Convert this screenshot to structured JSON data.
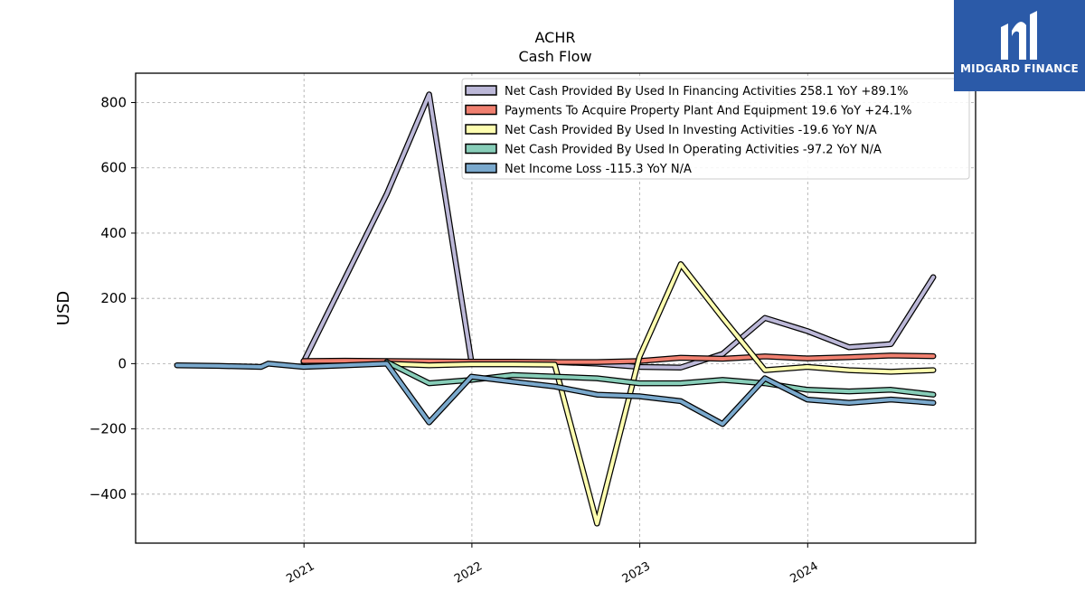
{
  "logo": {
    "text": "MIDGARD FINANCE",
    "color": "#2b5aa8"
  },
  "chart_data": {
    "type": "line",
    "title": "ACHR",
    "subtitle": "Cash Flow",
    "xlabel": "",
    "ylabel": "USD",
    "xlim": [
      "2020-01-01",
      "2024-12-31"
    ],
    "ylim": [
      -550,
      890
    ],
    "yticks": [
      -400,
      -200,
      0,
      200,
      400,
      600,
      800
    ],
    "ytick_labels": [
      "−400",
      "−200",
      "0",
      "200",
      "400",
      "600",
      "800"
    ],
    "xticks": [
      "2021-01-01",
      "2022-01-01",
      "2023-01-01",
      "2024-01-01"
    ],
    "xtick_labels": [
      "2021",
      "2022",
      "2023",
      "2024"
    ],
    "grid": true,
    "legend_position": "top-right",
    "series": [
      {
        "name": "Net Cash Provided By Used In Financing Activities",
        "legend_label": "Net Cash Provided By Used In Financing Activities  258.1 YoY +89.1%",
        "color": "#bcb8d8",
        "points": [
          [
            "2020-12-31",
            5
          ],
          [
            "2021-06-30",
            520
          ],
          [
            "2021-09-30",
            825
          ],
          [
            "2021-12-31",
            5
          ],
          [
            "2022-03-31",
            5
          ],
          [
            "2022-06-30",
            5
          ],
          [
            "2022-09-30",
            0
          ],
          [
            "2022-12-31",
            -10
          ],
          [
            "2023-03-31",
            -12
          ],
          [
            "2023-06-30",
            30
          ],
          [
            "2023-09-30",
            140
          ],
          [
            "2023-12-31",
            100
          ],
          [
            "2024-03-31",
            50
          ],
          [
            "2024-06-30",
            60
          ],
          [
            "2024-09-30",
            265
          ]
        ]
      },
      {
        "name": "Payments To Acquire Property Plant And Equipment",
        "legend_label": "Payments To Acquire Property Plant And Equipment  19.6 YoY +24.1%",
        "color": "#f08070",
        "points": [
          [
            "2020-12-31",
            8
          ],
          [
            "2021-03-31",
            9
          ],
          [
            "2021-06-30",
            8
          ],
          [
            "2021-09-30",
            7
          ],
          [
            "2021-12-31",
            6
          ],
          [
            "2022-03-31",
            6
          ],
          [
            "2022-06-30",
            5
          ],
          [
            "2022-09-30",
            5
          ],
          [
            "2022-12-31",
            8
          ],
          [
            "2023-03-31",
            18
          ],
          [
            "2023-06-30",
            15
          ],
          [
            "2023-09-30",
            22
          ],
          [
            "2023-12-31",
            16
          ],
          [
            "2024-03-31",
            20
          ],
          [
            "2024-06-30",
            25
          ],
          [
            "2024-09-30",
            23
          ]
        ]
      },
      {
        "name": "Net Cash Provided By Used In Investing Activities",
        "legend_label": "Net Cash Provided By Used In Investing Activities  -19.6 YoY N/A",
        "color": "#fefeb0",
        "points": [
          [
            "2021-06-30",
            0
          ],
          [
            "2021-09-30",
            -5
          ],
          [
            "2021-12-31",
            -2
          ],
          [
            "2022-03-31",
            -2
          ],
          [
            "2022-06-30",
            -3
          ],
          [
            "2022-09-30",
            -490
          ],
          [
            "2022-12-31",
            20
          ],
          [
            "2023-03-31",
            305
          ],
          [
            "2023-06-30",
            140
          ],
          [
            "2023-09-30",
            -20
          ],
          [
            "2023-12-31",
            -10
          ],
          [
            "2024-03-31",
            -20
          ],
          [
            "2024-06-30",
            -25
          ],
          [
            "2024-09-30",
            -20
          ]
        ]
      },
      {
        "name": "Net Cash Provided By Used In Operating Activities",
        "legend_label": "Net Cash Provided By Used In Operating Activities  -97.2 YoY N/A",
        "color": "#87cdb8",
        "points": [
          [
            "2021-06-30",
            5
          ],
          [
            "2021-09-30",
            -60
          ],
          [
            "2021-12-31",
            -50
          ],
          [
            "2022-03-31",
            -35
          ],
          [
            "2022-06-30",
            -40
          ],
          [
            "2022-09-30",
            -45
          ],
          [
            "2022-12-31",
            -60
          ],
          [
            "2023-03-31",
            -60
          ],
          [
            "2023-06-30",
            -50
          ],
          [
            "2023-09-30",
            -60
          ],
          [
            "2023-12-31",
            -80
          ],
          [
            "2024-03-31",
            -85
          ],
          [
            "2024-06-30",
            -80
          ],
          [
            "2024-09-30",
            -95
          ]
        ]
      },
      {
        "name": "Net Income Loss",
        "legend_label": "Net Income Loss  -115.3 YoY N/A",
        "color": "#7aa9cd",
        "points": [
          [
            "2020-03-31",
            -5
          ],
          [
            "2020-06-30",
            -7
          ],
          [
            "2020-09-30",
            -10
          ],
          [
            "2020-10-15",
            0
          ],
          [
            "2020-12-31",
            -10
          ],
          [
            "2021-03-31",
            -5
          ],
          [
            "2021-06-30",
            0
          ],
          [
            "2021-09-30",
            -180
          ],
          [
            "2021-12-31",
            -40
          ],
          [
            "2022-03-31",
            -55
          ],
          [
            "2022-06-30",
            -70
          ],
          [
            "2022-09-30",
            -95
          ],
          [
            "2022-12-31",
            -100
          ],
          [
            "2023-03-31",
            -115
          ],
          [
            "2023-06-30",
            -185
          ],
          [
            "2023-09-30",
            -45
          ],
          [
            "2023-12-31",
            -110
          ],
          [
            "2024-03-31",
            -120
          ],
          [
            "2024-06-30",
            -110
          ],
          [
            "2024-09-30",
            -120
          ]
        ]
      }
    ]
  }
}
